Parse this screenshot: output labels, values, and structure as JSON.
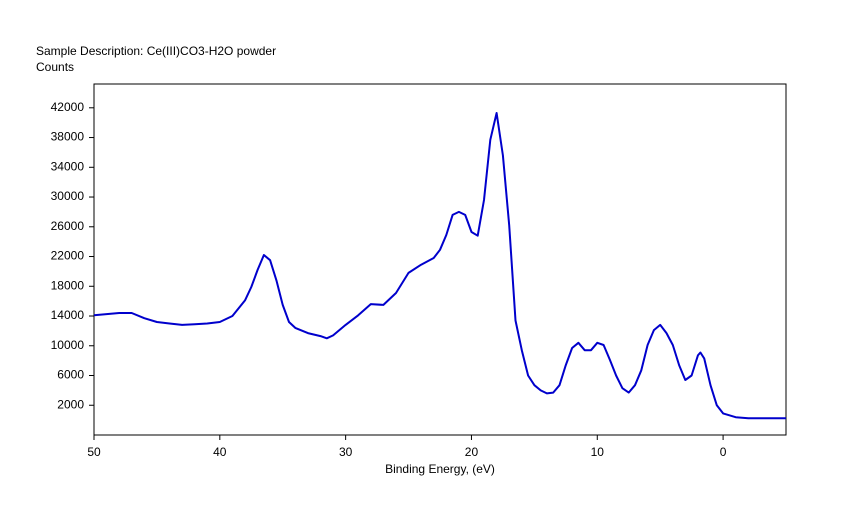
{
  "chart_data": {
    "type": "line",
    "title": "Sample Description:  Ce(III)CO3-H2O powder",
    "y_label": "Counts",
    "x_label": "Binding Energy, (eV)",
    "color": "#0000cc",
    "x": [
      50,
      48,
      47,
      46,
      45,
      44,
      43,
      42,
      41,
      40,
      39,
      38,
      37.5,
      37,
      36.5,
      36,
      35.5,
      35,
      34.5,
      34,
      33,
      32,
      31.5,
      31,
      30,
      29,
      28,
      27,
      26,
      25,
      24,
      23,
      22.5,
      22,
      21.5,
      21,
      20.5,
      20,
      19.5,
      19,
      18.5,
      18,
      17.5,
      17,
      16.5,
      16,
      15.5,
      15,
      14.5,
      14,
      13.5,
      13,
      12.5,
      12,
      11.5,
      11,
      10.5,
      10,
      9.5,
      9,
      8.5,
      8,
      7.5,
      7,
      6.5,
      6,
      5.5,
      5,
      4.5,
      4,
      3.5,
      3,
      2.5,
      2,
      1.8,
      1.5,
      1,
      0.5,
      0,
      -1,
      -2,
      -3,
      -5
    ],
    "values": [
      14100,
      14400,
      14400,
      13700,
      13200,
      13000,
      12800,
      12900,
      13000,
      13200,
      14000,
      16100,
      17900,
      20200,
      22200,
      21500,
      18800,
      15500,
      13200,
      12400,
      11700,
      11300,
      11000,
      11400,
      12800,
      14100,
      15600,
      15500,
      17100,
      19800,
      20900,
      21800,
      22900,
      24900,
      27600,
      28000,
      27600,
      25300,
      24800,
      29600,
      37700,
      41300,
      35600,
      26200,
      13400,
      9400,
      6000,
      4700,
      4000,
      3600,
      3700,
      4700,
      7400,
      9700,
      10400,
      9400,
      9400,
      10400,
      10100,
      8100,
      6000,
      4300,
      3700,
      4700,
      6700,
      10100,
      12100,
      12800,
      11700,
      10100,
      7400,
      5400,
      6000,
      8700,
      9100,
      8300,
      4700,
      2000,
      900,
      400,
      250,
      250,
      250
    ],
    "xlim": [
      50,
      -5
    ],
    "xticks": [
      50,
      40,
      30,
      20,
      10,
      0
    ],
    "ylim": [
      -2000,
      45200
    ],
    "yticks": [
      2000,
      6000,
      10000,
      14000,
      18000,
      22000,
      26000,
      30000,
      34000,
      38000,
      42000
    ]
  }
}
